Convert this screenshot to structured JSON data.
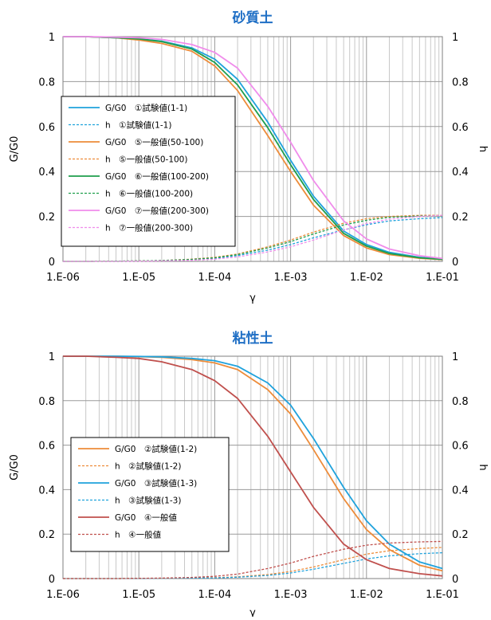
{
  "chart_data": [
    {
      "type": "line",
      "title": "砂質土",
      "xlabel": "γ",
      "ylabel": "G/G0",
      "y2label": "h",
      "xscale": "log",
      "xlim": [
        1e-06,
        0.1
      ],
      "ylim": [
        0,
        1
      ],
      "y2lim": [
        0,
        1
      ],
      "xticks": [
        "1.E-06",
        "1.E-05",
        "1.E-04",
        "1.E-03",
        "1.E-02",
        "1.E-01"
      ],
      "yticks": [
        "0",
        "0.2",
        "0.4",
        "0.6",
        "0.8",
        "1"
      ],
      "y2ticks": [
        "0",
        "0.2",
        "0.4",
        "0.6",
        "0.8",
        "1"
      ],
      "grid": true,
      "legend": "left",
      "x": [
        1e-06,
        2e-06,
        5e-06,
        1e-05,
        2e-05,
        5e-05,
        0.0001,
        0.0002,
        0.0005,
        0.001,
        0.002,
        0.005,
        0.01,
        0.02,
        0.05,
        0.1
      ],
      "series": [
        {
          "name": "G/G0　①試験値(1-1)",
          "color": "#1FA2DC",
          "dash": "solid",
          "values": [
            1.0,
            1.0,
            0.995,
            0.99,
            0.98,
            0.95,
            0.9,
            0.81,
            0.62,
            0.45,
            0.29,
            0.135,
            0.075,
            0.04,
            0.018,
            0.01
          ]
        },
        {
          "name": "h　①試験値(1-1)",
          "color": "#1FA2DC",
          "dash": "dashed",
          "values": [
            0.0,
            0.0,
            0.001,
            0.002,
            0.004,
            0.008,
            0.014,
            0.026,
            0.05,
            0.075,
            0.105,
            0.14,
            0.163,
            0.18,
            0.19,
            0.195
          ]
        },
        {
          "name": "G/G0　⑤一般値(50-100)",
          "color": "#ED8C3A",
          "dash": "solid",
          "values": [
            1.0,
            1.0,
            0.995,
            0.985,
            0.97,
            0.935,
            0.87,
            0.76,
            0.56,
            0.4,
            0.25,
            0.115,
            0.06,
            0.03,
            0.014,
            0.008
          ]
        },
        {
          "name": "h　⑤一般値(50-100)",
          "color": "#ED8C3A",
          "dash": "dashed",
          "values": [
            0.0,
            0.0,
            0.001,
            0.002,
            0.004,
            0.01,
            0.018,
            0.033,
            0.065,
            0.095,
            0.13,
            0.17,
            0.19,
            0.2,
            0.205,
            0.205
          ]
        },
        {
          "name": "G/G0　⑥一般値(100-200)",
          "color": "#1E9E4C",
          "dash": "solid",
          "values": [
            1.0,
            1.0,
            0.995,
            0.99,
            0.978,
            0.945,
            0.885,
            0.785,
            0.595,
            0.43,
            0.275,
            0.125,
            0.068,
            0.035,
            0.016,
            0.009
          ]
        },
        {
          "name": "h　⑥一般値(100-200)",
          "color": "#1E9E4C",
          "dash": "dashed",
          "values": [
            0.0,
            0.0,
            0.001,
            0.002,
            0.004,
            0.009,
            0.016,
            0.03,
            0.06,
            0.088,
            0.122,
            0.162,
            0.183,
            0.196,
            0.202,
            0.204
          ]
        },
        {
          "name": "G/G0　⑦一般値(200-300)",
          "color": "#F08CEB",
          "dash": "solid",
          "values": [
            1.0,
            1.0,
            0.998,
            0.995,
            0.988,
            0.965,
            0.93,
            0.86,
            0.69,
            0.53,
            0.36,
            0.18,
            0.1,
            0.055,
            0.025,
            0.013
          ]
        },
        {
          "name": "h　⑦一般値(200-300)",
          "color": "#F08CEB",
          "dash": "dashed",
          "values": [
            0.0,
            0.0,
            0.0,
            0.001,
            0.002,
            0.005,
            0.01,
            0.02,
            0.042,
            0.065,
            0.095,
            0.14,
            0.168,
            0.188,
            0.2,
            0.205
          ]
        }
      ]
    },
    {
      "type": "line",
      "title": "粘性土",
      "xlabel": "γ",
      "ylabel": "G/G0",
      "y2label": "h",
      "xscale": "log",
      "xlim": [
        1e-06,
        0.1
      ],
      "ylim": [
        0,
        1
      ],
      "y2lim": [
        0,
        1
      ],
      "xticks": [
        "1.E-06",
        "1.E-05",
        "1.E-04",
        "1.E-03",
        "1.E-02",
        "1.E-01"
      ],
      "yticks": [
        "0",
        "0.2",
        "0.4",
        "0.6",
        "0.8",
        "1"
      ],
      "y2ticks": [
        "0",
        "0.2",
        "0.4",
        "0.6",
        "0.8",
        "1"
      ],
      "grid": true,
      "legend": "left",
      "x": [
        1e-06,
        2e-06,
        5e-06,
        1e-05,
        2e-05,
        5e-05,
        0.0001,
        0.0002,
        0.0005,
        0.001,
        0.002,
        0.005,
        0.01,
        0.02,
        0.05,
        0.1
      ],
      "series": [
        {
          "name": "G/G0　②試験値(1-2)",
          "color": "#ED8C3A",
          "dash": "solid",
          "values": [
            1.0,
            1.0,
            1.0,
            0.998,
            0.995,
            0.985,
            0.97,
            0.94,
            0.85,
            0.74,
            0.58,
            0.36,
            0.22,
            0.13,
            0.06,
            0.035
          ]
        },
        {
          "name": "h　②試験値(1-2)",
          "color": "#ED8C3A",
          "dash": "dashed",
          "values": [
            0.0,
            0.0,
            0.0,
            0.001,
            0.001,
            0.002,
            0.004,
            0.008,
            0.018,
            0.032,
            0.052,
            0.085,
            0.11,
            0.125,
            0.135,
            0.14
          ]
        },
        {
          "name": "G/G0　③試験値(1-3)",
          "color": "#1FA2DC",
          "dash": "solid",
          "values": [
            1.0,
            1.0,
            1.0,
            0.999,
            0.997,
            0.99,
            0.98,
            0.955,
            0.88,
            0.78,
            0.63,
            0.41,
            0.26,
            0.155,
            0.075,
            0.045
          ]
        },
        {
          "name": "h　③試験値(1-3)",
          "color": "#1FA2DC",
          "dash": "dashed",
          "values": [
            0.0,
            0.0,
            0.0,
            0.0,
            0.001,
            0.002,
            0.003,
            0.006,
            0.014,
            0.025,
            0.042,
            0.068,
            0.088,
            0.102,
            0.112,
            0.116
          ]
        },
        {
          "name": "G/G0　④一般値",
          "color": "#C0504D",
          "dash": "solid",
          "values": [
            1.0,
            1.0,
            0.995,
            0.99,
            0.975,
            0.94,
            0.89,
            0.81,
            0.64,
            0.48,
            0.32,
            0.155,
            0.085,
            0.045,
            0.022,
            0.012
          ]
        },
        {
          "name": "h　④一般値",
          "color": "#C0504D",
          "dash": "dashed",
          "values": [
            0.0,
            0.0,
            0.0,
            0.001,
            0.002,
            0.005,
            0.01,
            0.02,
            0.045,
            0.07,
            0.1,
            0.132,
            0.15,
            0.16,
            0.165,
            0.167
          ]
        }
      ]
    }
  ]
}
